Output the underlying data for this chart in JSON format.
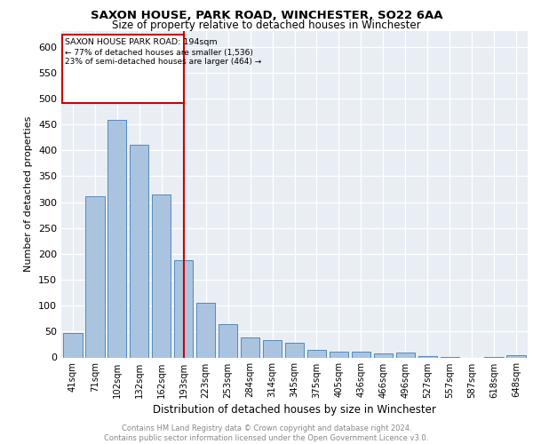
{
  "title1": "SAXON HOUSE, PARK ROAD, WINCHESTER, SO22 6AA",
  "title2": "Size of property relative to detached houses in Winchester",
  "xlabel": "Distribution of detached houses by size in Winchester",
  "ylabel": "Number of detached properties",
  "categories": [
    "41sqm",
    "71sqm",
    "102sqm",
    "132sqm",
    "162sqm",
    "193sqm",
    "223sqm",
    "253sqm",
    "284sqm",
    "314sqm",
    "345sqm",
    "375sqm",
    "405sqm",
    "436sqm",
    "466sqm",
    "496sqm",
    "527sqm",
    "557sqm",
    "587sqm",
    "618sqm",
    "648sqm"
  ],
  "values": [
    47,
    312,
    458,
    410,
    315,
    187,
    105,
    65,
    38,
    33,
    29,
    14,
    12,
    12,
    8,
    9,
    2,
    1,
    0,
    1,
    5
  ],
  "bar_color": "#aac4e0",
  "bar_edge_color": "#5588bb",
  "marker_index": 5,
  "marker_label": "SAXON HOUSE PARK ROAD: 194sqm",
  "annotation_line1": "← 77% of detached houses are smaller (1,536)",
  "annotation_line2": "23% of semi-detached houses are larger (464) →",
  "marker_color": "#cc0000",
  "annotation_box_color": "#cc0000",
  "background_color": "#e8eef4",
  "footer_text": "Contains HM Land Registry data © Crown copyright and database right 2024.\nContains public sector information licensed under the Open Government Licence v3.0.",
  "ylim": [
    0,
    630
  ],
  "yticks": [
    0,
    50,
    100,
    150,
    200,
    250,
    300,
    350,
    400,
    450,
    500,
    550,
    600
  ]
}
